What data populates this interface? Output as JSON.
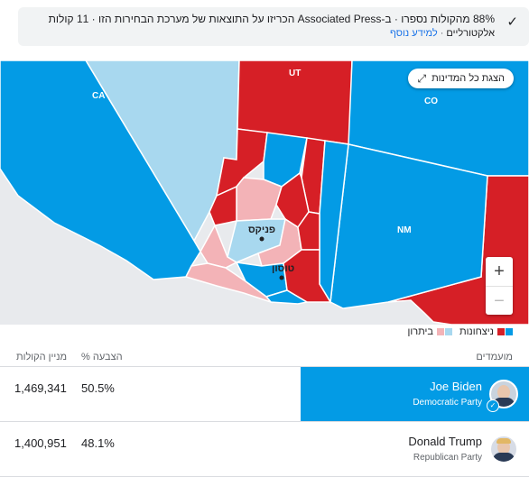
{
  "banner": {
    "line1": "88% מהקולות נספרו · ב-Associated Press הכריזו על התוצאות של מערכת הבחירות הזו · 11 קולות",
    "line2_text": "אלקטורליים",
    "more_info": "למידע נוסף"
  },
  "map": {
    "show_all_label": "הצגת כל המדינות",
    "state_labels": {
      "ca": "CA",
      "ut": "UT",
      "co": "CO",
      "nm": "NM"
    },
    "cities": {
      "phoenix": "פניקס",
      "tucson": "טוסון"
    },
    "colors": {
      "dem_win": "#039be5",
      "rep_win": "#d61f26",
      "dem_lead": "#a8d8ef",
      "rep_lead": "#f3b3b7"
    }
  },
  "legend": {
    "wins": "ניצחונות",
    "leading": "ביתרון"
  },
  "table": {
    "candidates_header": "מועמדים",
    "pct_header": "% הצבעה",
    "votes_header": "מניין הקולות",
    "rows": [
      {
        "name": "Joe Biden",
        "party": "Democratic Party",
        "pct": "50.5%",
        "votes": "1,469,341"
      },
      {
        "name": "Donald Trump",
        "party": "Republican Party",
        "pct": "48.1%",
        "votes": "1,400,951"
      }
    ]
  }
}
